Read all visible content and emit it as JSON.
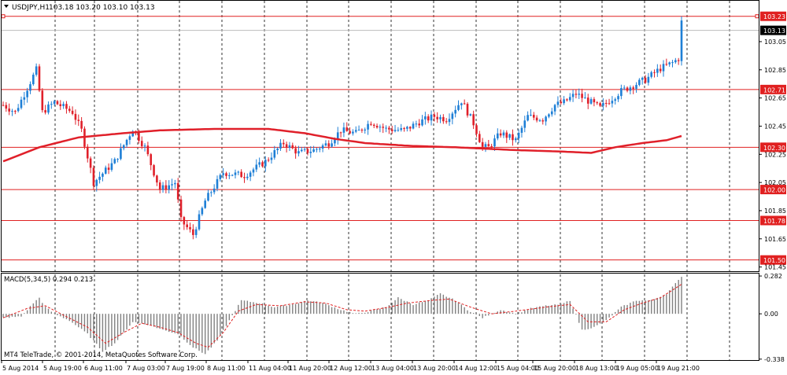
{
  "window": {
    "symbol_label": "USDJPY,H1",
    "ohlc_label": "103.18 103.20 103.10 103.13",
    "copyright": "MT4 TeleTrade, © 2001-2014, MetaQuotes Software Corp."
  },
  "colors": {
    "background": "#ffffff",
    "bull": "#1e7fd6",
    "bear": "#e0202a",
    "ma": "#e0202a",
    "hline": "#e02020",
    "grid": "#000000",
    "hist": "#808080",
    "signal": "#e02020"
  },
  "chart_data": [
    {
      "type": "candlestick",
      "title": "USDJPY,H1",
      "ylim": [
        101.42,
        103.34
      ],
      "yticks": [
        "103.05",
        "102.85",
        "102.65",
        "102.45",
        "102.25",
        "102.05",
        "101.85",
        "101.65",
        "101.45"
      ],
      "x_ticks": [
        "5 Aug 2014",
        "5 Aug 19:00",
        "6 Aug 11:00",
        "7 Aug 03:00",
        "7 Aug 19:00",
        "8 Aug 11:00",
        "11 Aug 04:00",
        "11 Aug 20:00",
        "12 Aug 12:00",
        "13 Aug 04:00",
        "13 Aug 20:00",
        "14 Aug 12:00",
        "15 Aug 04:00",
        "15 Aug 20:00",
        "18 Aug 13:00",
        "19 Aug 05:00",
        "19 Aug 21:00"
      ],
      "current_price": "103.13",
      "levels": [
        "103.23",
        "102.71",
        "102.30",
        "102.00",
        "101.78",
        "101.50"
      ],
      "keypoints": [
        [
          0,
          102.6
        ],
        [
          4,
          102.55
        ],
        [
          8,
          102.72
        ],
        [
          11,
          102.85
        ],
        [
          13,
          102.55
        ],
        [
          17,
          102.62
        ],
        [
          23,
          102.55
        ],
        [
          26,
          102.42
        ],
        [
          30,
          102.05
        ],
        [
          37,
          102.2
        ],
        [
          43,
          102.43
        ],
        [
          47,
          102.3
        ],
        [
          52,
          102.0
        ],
        [
          57,
          102.05
        ],
        [
          59,
          101.78
        ],
        [
          63,
          101.68
        ],
        [
          67,
          101.92
        ],
        [
          73,
          102.12
        ],
        [
          80,
          102.1
        ],
        [
          87,
          102.2
        ],
        [
          93,
          102.33
        ],
        [
          98,
          102.26
        ],
        [
          103,
          102.28
        ],
        [
          108,
          102.33
        ],
        [
          112,
          102.42
        ],
        [
          117,
          102.4
        ],
        [
          122,
          102.48
        ],
        [
          127,
          102.43
        ],
        [
          133,
          102.42
        ],
        [
          138,
          102.48
        ],
        [
          143,
          102.52
        ],
        [
          147,
          102.5
        ],
        [
          152,
          102.63
        ],
        [
          156,
          102.47
        ],
        [
          159,
          102.3
        ],
        [
          161,
          102.3
        ],
        [
          165,
          102.4
        ],
        [
          170,
          102.35
        ],
        [
          174,
          102.52
        ],
        [
          179,
          102.5
        ],
        [
          183,
          102.6
        ],
        [
          186,
          102.62
        ],
        [
          190,
          102.68
        ],
        [
          194,
          102.63
        ],
        [
          198,
          102.58
        ],
        [
          205,
          102.7
        ],
        [
          213,
          102.78
        ],
        [
          218,
          102.86
        ],
        [
          222,
          102.9
        ],
        [
          224,
          102.93
        ],
        [
          225,
          103.2
        ]
      ],
      "ma_series": [
        [
          0,
          102.2
        ],
        [
          12,
          102.3
        ],
        [
          25,
          102.37
        ],
        [
          40,
          102.4
        ],
        [
          52,
          102.42
        ],
        [
          70,
          102.43
        ],
        [
          88,
          102.43
        ],
        [
          100,
          102.4
        ],
        [
          110,
          102.36
        ],
        [
          120,
          102.33
        ],
        [
          135,
          102.31
        ],
        [
          150,
          102.3
        ],
        [
          160,
          102.29
        ],
        [
          170,
          102.28
        ],
        [
          185,
          102.27
        ],
        [
          195,
          102.26
        ],
        [
          203,
          102.3
        ],
        [
          212,
          102.33
        ],
        [
          220,
          102.35
        ],
        [
          225,
          102.38
        ]
      ]
    },
    {
      "type": "histogram",
      "title": "MACD(5,34,5) 0.294 0.213",
      "ylim": [
        -0.345,
        0.3
      ],
      "yticks": [
        "0.282",
        "0.00",
        "-0.338"
      ],
      "keypoints": [
        [
          0,
          -0.03
        ],
        [
          6,
          -0.02
        ],
        [
          10,
          0.08
        ],
        [
          12,
          0.12
        ],
        [
          14,
          0.05
        ],
        [
          17,
          0.0
        ],
        [
          22,
          -0.05
        ],
        [
          28,
          -0.15
        ],
        [
          33,
          -0.28
        ],
        [
          37,
          -0.22
        ],
        [
          43,
          -0.06
        ],
        [
          48,
          -0.08
        ],
        [
          53,
          -0.12
        ],
        [
          58,
          -0.15
        ],
        [
          63,
          -0.25
        ],
        [
          67,
          -0.3
        ],
        [
          71,
          -0.2
        ],
        [
          75,
          -0.05
        ],
        [
          79,
          0.1
        ],
        [
          85,
          0.08
        ],
        [
          90,
          0.05
        ],
        [
          96,
          0.07
        ],
        [
          101,
          0.1
        ],
        [
          106,
          0.08
        ],
        [
          112,
          0.03
        ],
        [
          117,
          0.0
        ],
        [
          122,
          0.02
        ],
        [
          127,
          0.05
        ],
        [
          131,
          0.12
        ],
        [
          136,
          0.07
        ],
        [
          141,
          0.1
        ],
        [
          145,
          0.15
        ],
        [
          150,
          0.1
        ],
        [
          154,
          0.03
        ],
        [
          159,
          -0.03
        ],
        [
          165,
          0.03
        ],
        [
          170,
          0.0
        ],
        [
          175,
          0.04
        ],
        [
          180,
          0.06
        ],
        [
          185,
          0.07
        ],
        [
          188,
          0.1
        ],
        [
          192,
          -0.12
        ],
        [
          196,
          -0.1
        ],
        [
          200,
          -0.05
        ],
        [
          205,
          0.05
        ],
        [
          210,
          0.1
        ],
        [
          215,
          0.1
        ],
        [
          220,
          0.15
        ],
        [
          224,
          0.25
        ],
        [
          225,
          0.28
        ]
      ],
      "signal_keypoints": [
        [
          0,
          -0.03
        ],
        [
          8,
          0.04
        ],
        [
          14,
          0.06
        ],
        [
          20,
          -0.01
        ],
        [
          28,
          -0.1
        ],
        [
          34,
          -0.22
        ],
        [
          40,
          -0.14
        ],
        [
          46,
          -0.07
        ],
        [
          52,
          -0.1
        ],
        [
          58,
          -0.14
        ],
        [
          64,
          -0.22
        ],
        [
          68,
          -0.25
        ],
        [
          73,
          -0.14
        ],
        [
          78,
          0.02
        ],
        [
          84,
          0.07
        ],
        [
          92,
          0.06
        ],
        [
          100,
          0.09
        ],
        [
          107,
          0.08
        ],
        [
          114,
          0.03
        ],
        [
          120,
          0.02
        ],
        [
          128,
          0.05
        ],
        [
          134,
          0.08
        ],
        [
          142,
          0.1
        ],
        [
          148,
          0.11
        ],
        [
          155,
          0.05
        ],
        [
          162,
          0.0
        ],
        [
          170,
          0.02
        ],
        [
          180,
          0.05
        ],
        [
          188,
          0.07
        ],
        [
          194,
          -0.06
        ],
        [
          200,
          -0.06
        ],
        [
          206,
          0.03
        ],
        [
          212,
          0.08
        ],
        [
          218,
          0.12
        ],
        [
          225,
          0.22
        ]
      ]
    }
  ]
}
